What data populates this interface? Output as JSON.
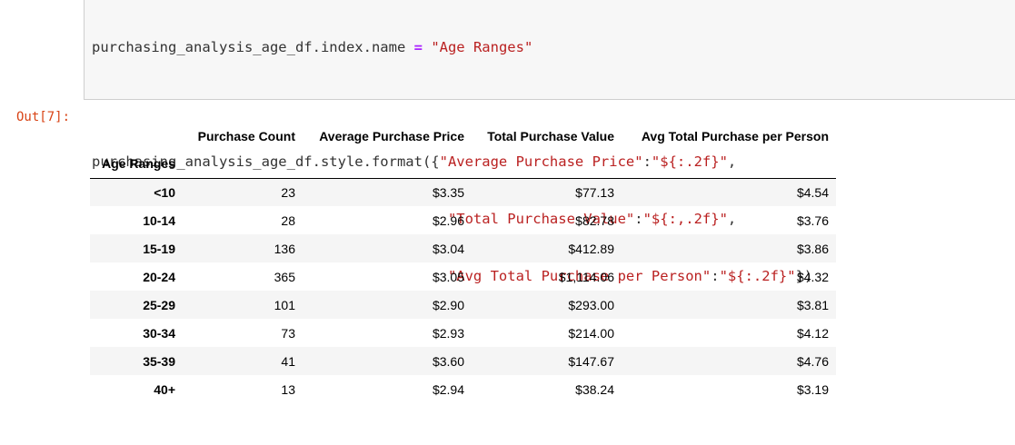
{
  "code_cell": {
    "line1_var": "purchasing_analysis_age_df.index.name",
    "line1_op": "=",
    "line1_str": "\"Age Ranges\"",
    "line2_prefix": "purchasing_analysis_age_df.style.format({",
    "line2_key": "\"Average Purchase Price\"",
    "line2_colon": ":",
    "line2_fmt": "\"${:.2f}\"",
    "line2_end": ",",
    "line3_key": "\"Total Purchase Value\"",
    "line3_colon": ":",
    "line3_fmt": "\"${:,.2f}\"",
    "line3_end": ",",
    "line4_key": "\"Avg Total Purchase per Person\"",
    "line4_colon": ":",
    "line4_fmt": "\"${:.2f}\"",
    "line4_end": "})"
  },
  "output": {
    "prompt": "Out[7]:",
    "index_name": "Age Ranges",
    "columns": [
      "Purchase Count",
      "Average Purchase Price",
      "Total Purchase Value",
      "Avg Total Purchase per Person"
    ],
    "rows": [
      {
        "index": "<10",
        "values": [
          "23",
          "$3.35",
          "$77.13",
          "$4.54"
        ]
      },
      {
        "index": "10-14",
        "values": [
          "28",
          "$2.96",
          "$82.78",
          "$3.76"
        ]
      },
      {
        "index": "15-19",
        "values": [
          "136",
          "$3.04",
          "$412.89",
          "$3.86"
        ]
      },
      {
        "index": "20-24",
        "values": [
          "365",
          "$3.05",
          "$1,114.06",
          "$4.32"
        ]
      },
      {
        "index": "25-29",
        "values": [
          "101",
          "$2.90",
          "$293.00",
          "$3.81"
        ]
      },
      {
        "index": "30-34",
        "values": [
          "73",
          "$2.93",
          "$214.00",
          "$4.12"
        ]
      },
      {
        "index": "35-39",
        "values": [
          "41",
          "$3.60",
          "$147.67",
          "$4.76"
        ]
      },
      {
        "index": "40+",
        "values": [
          "13",
          "$2.94",
          "$38.24",
          "$3.19"
        ]
      }
    ]
  },
  "colors": {
    "operator": "#aa22ff",
    "string": "#ba2121",
    "out_prompt": "#d84315",
    "code_bg": "#f7f7f7",
    "row_stripe": "#f5f5f5"
  }
}
